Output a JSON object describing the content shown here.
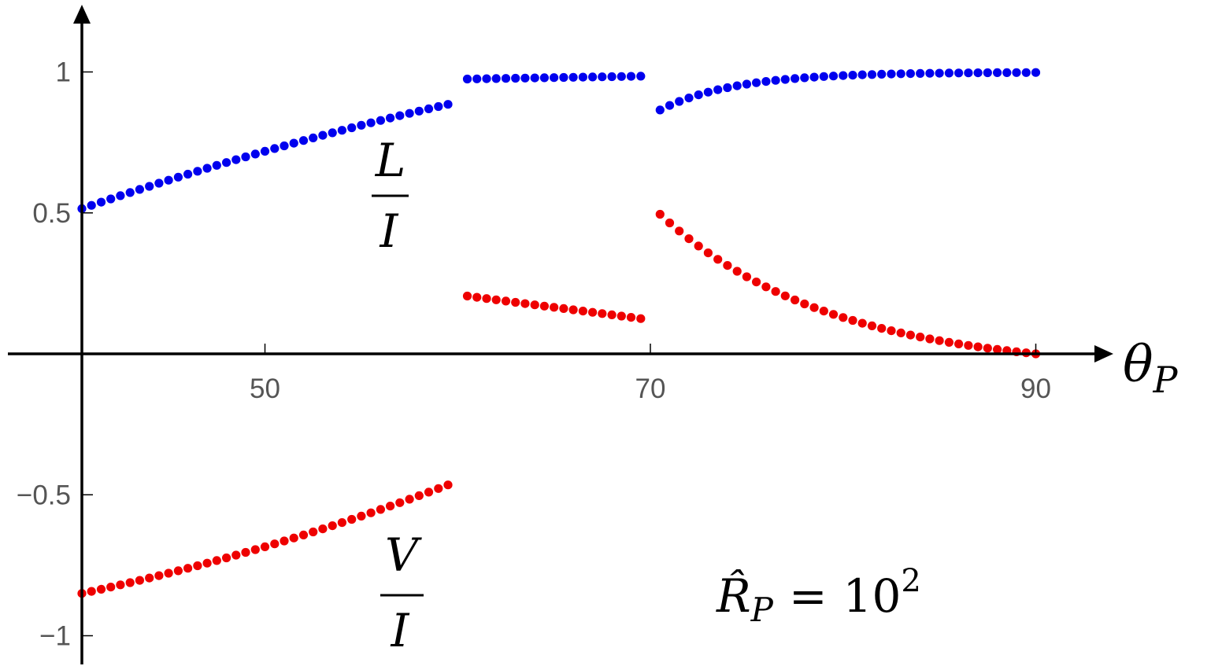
{
  "chart_data": {
    "type": "scatter",
    "xlim": [
      40.5,
      93
    ],
    "ylim": [
      -1.1,
      1.25
    ],
    "grid": false,
    "x_ticks": [
      {
        "value": 50,
        "label": "50"
      },
      {
        "value": 70,
        "label": "70"
      },
      {
        "value": 90,
        "label": "90"
      }
    ],
    "y_ticks": [
      {
        "value": 1,
        "label": "1"
      },
      {
        "value": 0.5,
        "label": "0.5"
      },
      {
        "value": -0.5,
        "label": "−0.5"
      },
      {
        "value": -1,
        "label": "−1"
      }
    ],
    "xlabel": {
      "symbol": "θ",
      "subscript": "P"
    },
    "annotations": {
      "L_over_I": {
        "numerator": "L",
        "denominator": "I"
      },
      "V_over_I": {
        "numerator": "V",
        "denominator": "I"
      },
      "param": {
        "symbol": "R̂",
        "subscript": "P",
        "equals": "=",
        "base": "10",
        "exponent": "2"
      }
    },
    "colors": {
      "blue": "#0000ee",
      "red": "#ee0000",
      "axis": "#000000",
      "ticks": "#555555"
    },
    "series": [
      {
        "color": "blue",
        "segments": [
          {
            "x_start": 40.5,
            "x_end": 59.5,
            "count": 39,
            "y_start": 0.515,
            "y_end": 0.885,
            "shape": "concave"
          },
          {
            "x_start": 60.5,
            "x_end": 69.5,
            "count": 19,
            "y_start": 0.975,
            "y_end": 0.985,
            "shape": "linear"
          },
          {
            "x_start": 70.5,
            "x_end": 90.0,
            "count": 40,
            "y_start": 0.865,
            "y_end": 0.998,
            "shape": "saturating"
          }
        ]
      },
      {
        "color": "red",
        "segments": [
          {
            "x_start": 40.5,
            "x_end": 59.5,
            "count": 39,
            "y_start": -0.85,
            "y_end": -0.465,
            "shape": "convex"
          },
          {
            "x_start": 60.5,
            "x_end": 69.5,
            "count": 19,
            "y_start": 0.205,
            "y_end": 0.125,
            "shape": "linear"
          },
          {
            "x_start": 70.5,
            "x_end": 90.0,
            "count": 40,
            "y_start": 0.495,
            "y_end": 0.0,
            "shape": "decaying"
          }
        ]
      }
    ]
  }
}
